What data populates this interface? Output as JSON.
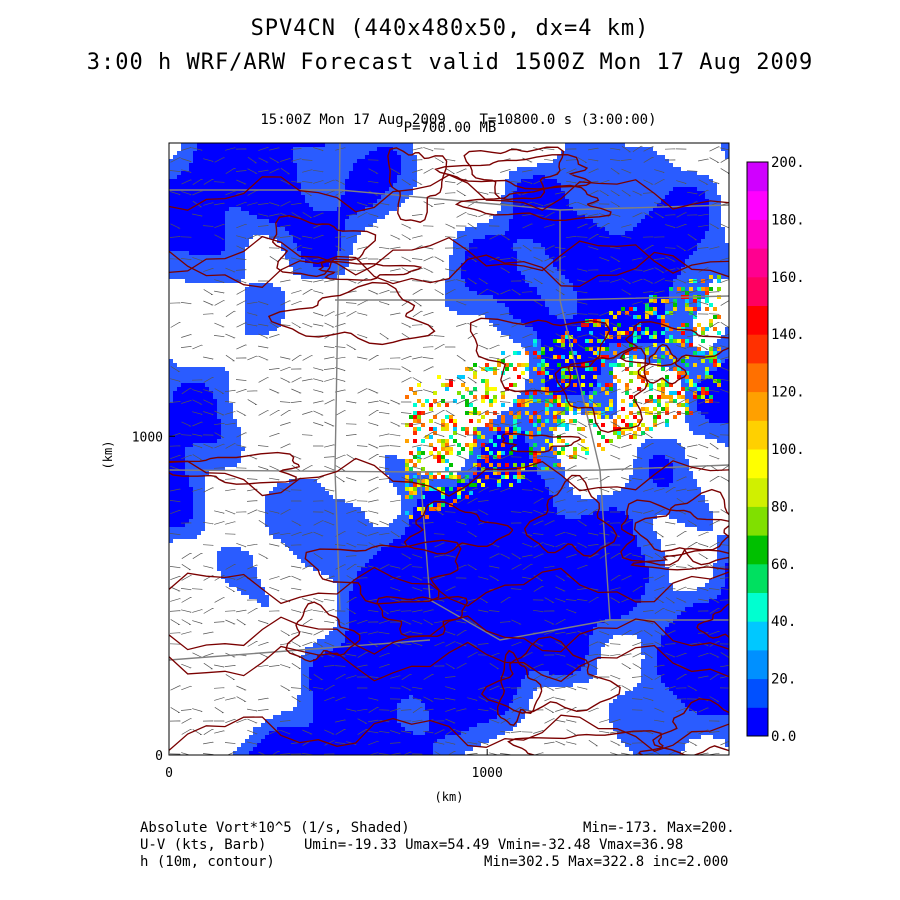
{
  "header": {
    "title": "SPV4CN (440x480x50, dx=4 km)",
    "subtitle": "3:00 h WRF/ARW Forecast valid 1500Z Mon 17 Aug 2009",
    "time_line_left": "15:00Z Mon 17 Aug 2009",
    "time_line_right": "T=10800.0 s (3:00:00)",
    "level": "P=700.00 MB"
  },
  "chart_data": {
    "type": "heatmap",
    "xlabel": "(km)",
    "ylabel": "(km)",
    "x_ticks": [
      "0",
      "1000"
    ],
    "y_ticks": [
      "0",
      "1000"
    ],
    "xlim": [
      0,
      1760
    ],
    "ylim": [
      0,
      1920
    ],
    "colorbar": {
      "labels": [
        "0.0",
        "20.",
        "40.",
        "60.",
        "80.",
        "100.",
        "120.",
        "140.",
        "160.",
        "180.",
        "200."
      ],
      "colors": [
        "#0000ff",
        "#0050ff",
        "#0090ff",
        "#00c8ff",
        "#00ffd0",
        "#00e060",
        "#00c000",
        "#80e000",
        "#d0f000",
        "#ffff00",
        "#ffd000",
        "#ffa000",
        "#ff7000",
        "#ff3000",
        "#ff0000",
        "#ff0060",
        "#ff0090",
        "#ff00c8",
        "#ff00ff",
        "#d000ff"
      ]
    },
    "colors": {
      "shading_main": "#0000ff",
      "shading_light": "#2a5cff",
      "contour": "#7a0000",
      "barb": "#555555",
      "boundary": "#808080"
    }
  },
  "footer": {
    "field1_name": "Absolute Vort*10^5 (1/s, Shaded)",
    "field1_stats": "Min=-173. Max=200.",
    "field2_name": "U-V (kts, Barb)",
    "field2_stats": "Umin=-19.33 Umax=54.49 Vmin=-32.48 Vmax=36.98",
    "field3_name": "h (10m, contour)",
    "field3_stats": "Min=302.5 Max=322.8 inc=2.000"
  }
}
